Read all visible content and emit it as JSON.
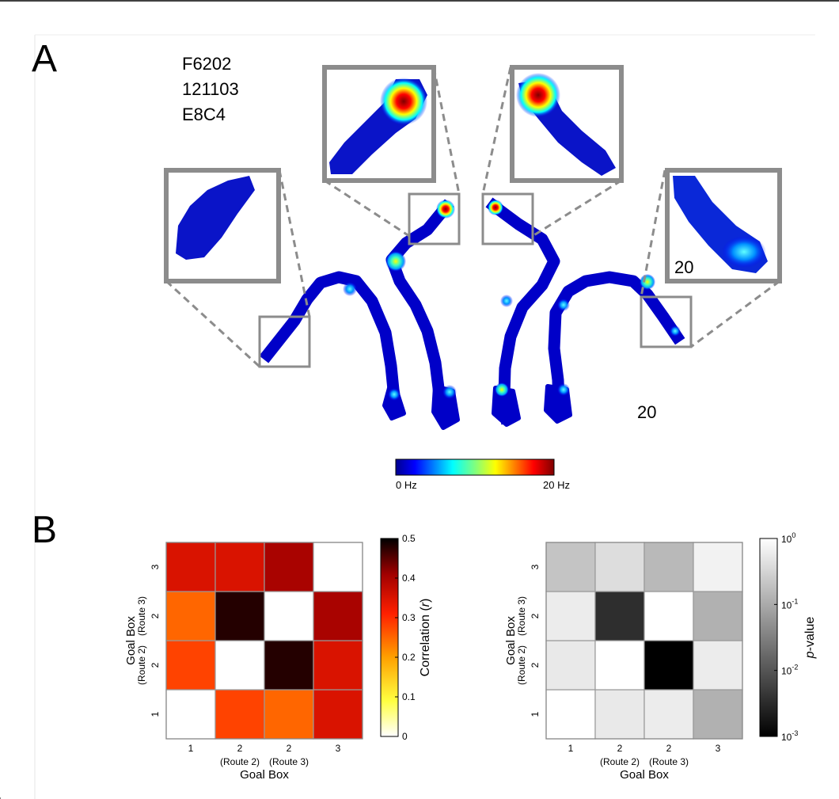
{
  "panel_a": {
    "label": "A",
    "id_lines": [
      "F6202",
      "121103",
      "E8C4"
    ],
    "scale_main": "20",
    "scale_inset": "20",
    "colorbar": {
      "min_label": "0 Hz",
      "max_label": "20 Hz"
    }
  },
  "panel_b": {
    "label": "B"
  },
  "chart_data": [
    {
      "type": "heatmap",
      "x_tick_labels": [
        [
          "1",
          ""
        ],
        [
          "2",
          "(Route 2)"
        ],
        [
          "2",
          "(Route 3)"
        ],
        [
          "3",
          ""
        ]
      ],
      "y_tick_labels": [
        [
          "1",
          ""
        ],
        [
          "2",
          "(Route 2)"
        ],
        [
          "2",
          "(Route 3)"
        ],
        [
          "3",
          ""
        ]
      ],
      "xlabel": "Goal Box",
      "ylabel": "Goal Box",
      "values": [
        [
          null,
          0.28,
          0.25,
          0.35
        ],
        [
          0.28,
          null,
          0.48,
          0.35
        ],
        [
          0.25,
          0.48,
          null,
          0.4
        ],
        [
          0.35,
          0.35,
          0.4,
          null
        ]
      ],
      "colorbar": {
        "label_prefix": "Correlation (",
        "label_var": "r",
        "label_suffix": ")",
        "range": [
          0,
          0.5
        ],
        "ticks": [
          "0",
          "0.1",
          "0.2",
          "0.3",
          "0.4",
          "0.5"
        ],
        "colormap": "hot-reversed"
      }
    },
    {
      "type": "heatmap",
      "x_tick_labels": [
        [
          "1",
          ""
        ],
        [
          "2",
          "(Route 2)"
        ],
        [
          "2",
          "(Route 3)"
        ],
        [
          "3",
          ""
        ]
      ],
      "y_tick_labels": [
        [
          "1",
          ""
        ],
        [
          "2",
          "(Route 2)"
        ],
        [
          "2",
          "(Route 3)"
        ],
        [
          "3",
          ""
        ]
      ],
      "xlabel": "Goal Box",
      "ylabel": "Goal Box",
      "values": [
        [
          null,
          0.55,
          0.6,
          0.12
        ],
        [
          0.55,
          null,
          0.001,
          0.6
        ],
        [
          0.6,
          0.0035,
          null,
          0.12
        ],
        [
          0.2,
          0.4,
          0.15,
          0.7
        ]
      ],
      "log_scale": true,
      "colorbar": {
        "label_var": "p",
        "label_suffix": "-value",
        "range": [
          0.001,
          1
        ],
        "ticks": [
          {
            "base": "10",
            "exp": "0"
          },
          {
            "base": "10",
            "exp": "-1"
          },
          {
            "base": "10",
            "exp": "-2"
          },
          {
            "base": "10",
            "exp": "-3"
          }
        ],
        "colormap": "gray"
      }
    }
  ]
}
